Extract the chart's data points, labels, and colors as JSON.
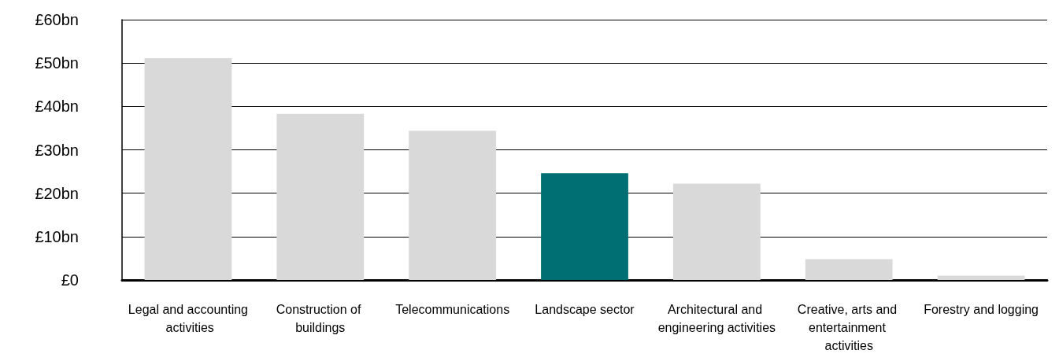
{
  "chart_data": {
    "type": "bar",
    "categories": [
      "Legal and accounting activities",
      "Construction of buildings",
      "Telecommunications",
      "Landscape sector",
      "Architectural and engineering activities",
      "Creative, arts and entertainment activities",
      "Forestry and logging"
    ],
    "values": [
      51.1,
      38.3,
      34.4,
      24.6,
      22.2,
      4.8,
      1.0
    ],
    "colors": [
      "#d9d9d9",
      "#d9d9d9",
      "#d9d9d9",
      "#006f74",
      "#d9d9d9",
      "#d9d9d9",
      "#d9d9d9"
    ],
    "ylim": [
      0,
      60
    ],
    "yticks": [
      {
        "value": 0,
        "label": "£0"
      },
      {
        "value": 10,
        "label": "£10bn"
      },
      {
        "value": 20,
        "label": "£20bn"
      },
      {
        "value": 30,
        "label": "£30bn"
      },
      {
        "value": 40,
        "label": "£40bn"
      },
      {
        "value": 50,
        "label": "£50bn"
      },
      {
        "value": 60,
        "label": "£60bn"
      }
    ],
    "grid": "y"
  }
}
